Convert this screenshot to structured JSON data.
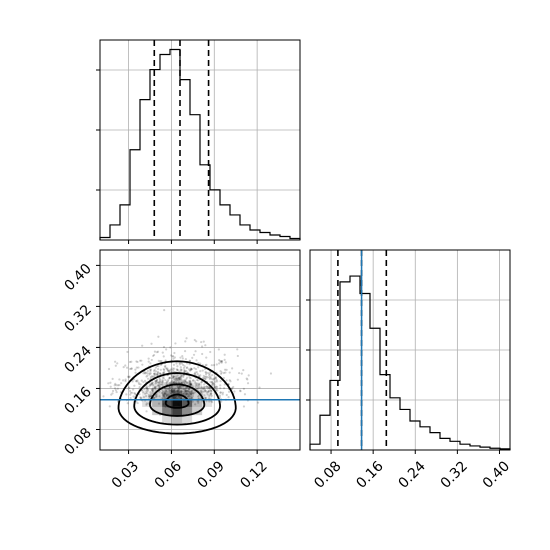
{
  "chart_data": [
    {
      "type": "histogram",
      "panel": "top-left",
      "variable": "param_1",
      "bin_range": [
        0.01,
        0.15
      ],
      "counts": [
        0.5,
        3,
        7,
        18,
        28,
        34,
        37,
        38,
        32,
        25,
        15,
        10,
        7,
        5,
        3,
        2,
        1.5,
        1,
        0.7,
        0.3
      ],
      "quantiles": [
        0.048,
        0.066,
        0.086
      ],
      "grid": true
    },
    {
      "type": "histogram",
      "panel": "bottom-right",
      "variable": "param_2",
      "bin_range": [
        0.04,
        0.42
      ],
      "counts": [
        1,
        6,
        12,
        29,
        30,
        27,
        21,
        13,
        9,
        7,
        5,
        4,
        3,
        2,
        1.5,
        1,
        0.7,
        0.5,
        0.3,
        0.2
      ],
      "quantiles": [
        0.093,
        0.138,
        0.185
      ],
      "truth": 0.138,
      "x_ticks": [
        "0.08",
        "0.16",
        "0.24",
        "0.32",
        "0.40"
      ],
      "grid": true
    },
    {
      "type": "scatter",
      "panel": "bottom-left",
      "variable_x": "param_1",
      "variable_y": "param_2",
      "xlim": [
        0.01,
        0.15
      ],
      "ylim": [
        0.04,
        0.43
      ],
      "center": [
        0.064,
        0.132
      ],
      "spread": [
        0.016,
        0.036
      ],
      "contour_levels": [
        {
          "rx": 0.008,
          "ry": 0.016
        },
        {
          "rx": 0.019,
          "ry": 0.038
        },
        {
          "rx": 0.03,
          "ry": 0.062
        },
        {
          "rx": 0.041,
          "ry": 0.087
        }
      ],
      "truth_y": 0.138,
      "x_ticks": [
        "0.03",
        "0.06",
        "0.09",
        "0.12"
      ],
      "y_ticks": [
        "0.08",
        "0.16",
        "0.24",
        "0.32",
        "0.40"
      ],
      "grid": true
    }
  ]
}
